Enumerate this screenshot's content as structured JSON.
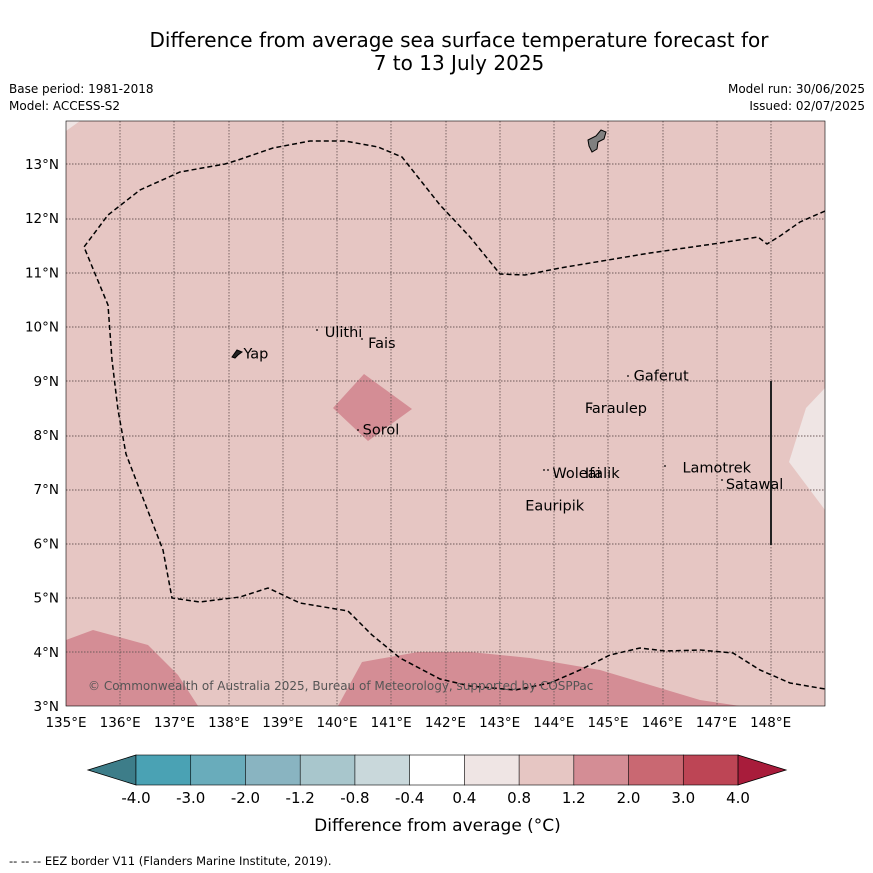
{
  "header": {
    "title_line1": "Difference from average sea surface temperature forecast for",
    "title_line2": "7 to 13 July 2025",
    "base_period": "Base period: 1981-2018",
    "model": "Model: ACCESS-S2",
    "model_run": "Model run: 30/06/2025",
    "issued": "Issued: 02/07/2025"
  },
  "map": {
    "lon_labels": [
      "135°E",
      "136°E",
      "137°E",
      "138°E",
      "139°E",
      "140°E",
      "141°E",
      "142°E",
      "143°E",
      "144°E",
      "145°E",
      "146°E",
      "147°E",
      "148°E"
    ],
    "lat_labels": [
      "13°N",
      "12°N",
      "11°N",
      "10°N",
      "9°N",
      "8°N",
      "7°N",
      "6°N",
      "5°N",
      "4°N",
      "3°N"
    ],
    "extent": {
      "lon": [
        135,
        149
      ],
      "lat": [
        3,
        13.8
      ]
    },
    "places": [
      {
        "name": "Yap",
        "lon": 138.2,
        "lat": 9.5
      },
      {
        "name": "Ulithi",
        "lon": 139.7,
        "lat": 9.9
      },
      {
        "name": "Fais",
        "lon": 140.5,
        "lat": 9.7
      },
      {
        "name": "Sorol",
        "lon": 140.4,
        "lat": 8.1
      },
      {
        "name": "Gaferut",
        "lon": 145.4,
        "lat": 9.1
      },
      {
        "name": "Faraulep",
        "lon": 144.5,
        "lat": 8.5
      },
      {
        "name": "Woleai",
        "lon": 143.9,
        "lat": 7.3
      },
      {
        "name": "Ifalik",
        "lon": 144.5,
        "lat": 7.3
      },
      {
        "name": "Eauripik",
        "lon": 143.4,
        "lat": 6.7
      },
      {
        "name": "Lamotrek",
        "lon": 146.3,
        "lat": 7.4
      },
      {
        "name": "Satawal",
        "lon": 147.1,
        "lat": 7.1
      }
    ],
    "credit": "© Commonwealth of Australia 2025, Bureau of Meteorology, supported by COSPPac",
    "background_anomaly_range": "0.8 to 1.2",
    "colors": {
      "bg_class": "#e6c6c3",
      "warm_class": "#d48d95",
      "cool_class": "#efe5e4"
    }
  },
  "colorbar": {
    "ticks": [
      "-4.0",
      "-3.0",
      "-2.0",
      "-1.2",
      "-0.8",
      "-0.4",
      "0.4",
      "0.8",
      "1.2",
      "2.0",
      "3.0",
      "4.0"
    ],
    "colors": [
      "#3d7d89",
      "#4aa2b4",
      "#69acbb",
      "#89b4c1",
      "#a8c6cc",
      "#c9d8db",
      "#ffffff",
      "#efe5e4",
      "#e6c6c3",
      "#d48d95",
      "#c96872",
      "#bd4555",
      "#a81c3b"
    ],
    "label": "Difference from average (°C)"
  },
  "footnote": "-- -- -- EEZ border V11 (Flanders Marine Institute, 2019)."
}
